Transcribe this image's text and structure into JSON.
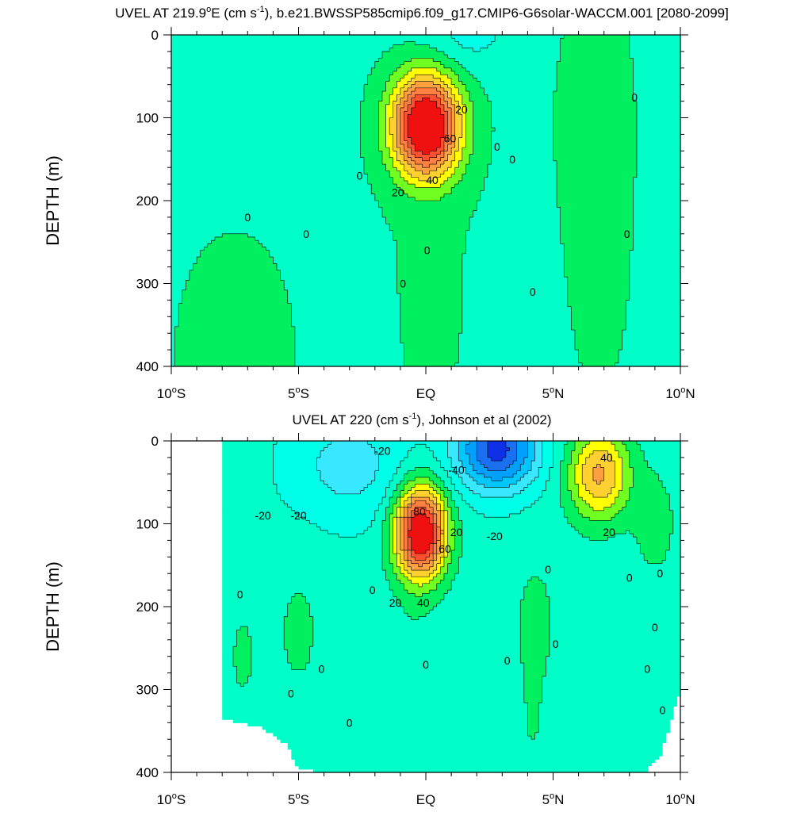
{
  "colors": {
    "levels": [
      -60,
      -50,
      -40,
      -30,
      -20,
      -10,
      0,
      10,
      20,
      30,
      40,
      50,
      60,
      70,
      80
    ],
    "fills": [
      "#1030e8",
      "#1a70f0",
      "#00a0ff",
      "#00c8ff",
      "#38e8ff",
      "#00ffe8",
      "#00ffc8",
      "#00f060",
      "#70ff20",
      "#ffff00",
      "#ffd030",
      "#ffa040",
      "#ff8040",
      "#ff5030",
      "#f01010"
    ],
    "line": "#000000"
  },
  "chart_data": [
    {
      "type": "contour",
      "title_main": "UVEL AT 219.9",
      "title_deg": "o",
      "title_mid": "E (cm s",
      "title_exp": "-1",
      "title_end": "), b.e21.BWSSP585cmip6.f09_g17.CMIP6-G6solar-WACCM.001 [2080-2099]",
      "ylabel": "DEPTH (m)",
      "xlim": [
        -10,
        10
      ],
      "ylim": [
        0,
        400
      ],
      "y_reversed": true,
      "x_ticks": [
        {
          "v": -10,
          "label": "10",
          "deg": "o",
          "suffix": "S"
        },
        {
          "v": -5,
          "label": "5",
          "deg": "o",
          "suffix": "S"
        },
        {
          "v": 0,
          "label": "EQ",
          "deg": "",
          "suffix": ""
        },
        {
          "v": 5,
          "label": "5",
          "deg": "o",
          "suffix": "N"
        },
        {
          "v": 10,
          "label": "10",
          "deg": "o",
          "suffix": "N"
        }
      ],
      "y_ticks": [
        0,
        100,
        200,
        300,
        400
      ],
      "features": [
        {
          "x": 0.0,
          "y": 110,
          "sx": 1.3,
          "sy": 60,
          "a": 95
        },
        {
          "x": 0.2,
          "y": 280,
          "sx": 2.0,
          "sy": 300,
          "a": 3
        },
        {
          "x": 6.6,
          "y": 80,
          "sx": 1.4,
          "sy": 150,
          "a": 6
        },
        {
          "x": 6.8,
          "y": 300,
          "sx": 1.6,
          "sy": 200,
          "a": 3
        },
        {
          "x": -7.5,
          "y": 380,
          "sx": 2.8,
          "sy": 170,
          "a": 4
        },
        {
          "x": 1.5,
          "y": 0,
          "sx": 2.0,
          "sy": 45,
          "a": -12
        },
        {
          "x": -7.0,
          "y": 60,
          "sx": 2.5,
          "sy": 70,
          "a": -3
        }
      ],
      "base": -2,
      "contour_labels": [
        {
          "x": 1.4,
          "y": 90,
          "text": "20"
        },
        {
          "x": 0.95,
          "y": 125,
          "text": "60"
        },
        {
          "x": 0.25,
          "y": 175,
          "text": "40"
        },
        {
          "x": -1.1,
          "y": 190,
          "text": "20"
        },
        {
          "x": -2.6,
          "y": 170,
          "text": "0"
        },
        {
          "x": -7.0,
          "y": 220,
          "text": "0"
        },
        {
          "x": -4.7,
          "y": 240,
          "text": "0"
        },
        {
          "x": 0.05,
          "y": 260,
          "text": "0"
        },
        {
          "x": -0.9,
          "y": 300,
          "text": "0"
        },
        {
          "x": 2.8,
          "y": 135,
          "text": "0"
        },
        {
          "x": 3.4,
          "y": 150,
          "text": "0"
        },
        {
          "x": 4.2,
          "y": 310,
          "text": "0"
        },
        {
          "x": 8.2,
          "y": 75,
          "text": "0"
        },
        {
          "x": 7.9,
          "y": 240,
          "text": "0"
        }
      ]
    },
    {
      "type": "contour",
      "title_main": "UVEL AT 220 (cm s",
      "title_deg": "",
      "title_mid": "",
      "title_exp": "-1",
      "title_end": "), Johnson et al (2002)",
      "ylabel": "DEPTH (m)",
      "xlim": [
        -10,
        10
      ],
      "ylim": [
        0,
        400
      ],
      "y_reversed": true,
      "x_ticks": [
        {
          "v": -10,
          "label": "10",
          "deg": "o",
          "suffix": "S"
        },
        {
          "v": -5,
          "label": "5",
          "deg": "o",
          "suffix": "S"
        },
        {
          "v": 0,
          "label": "EQ",
          "deg": "",
          "suffix": ""
        },
        {
          "v": 5,
          "label": "5",
          "deg": "o",
          "suffix": "N"
        },
        {
          "v": 10,
          "label": "10",
          "deg": "o",
          "suffix": "N"
        }
      ],
      "y_ticks": [
        0,
        100,
        200,
        300,
        400
      ],
      "valid_x": [
        -8.0,
        10.0
      ],
      "mask_bottom": [
        {
          "x": -10,
          "d": 335
        },
        {
          "x": -8,
          "d": 335
        },
        {
          "x": -6.5,
          "d": 345
        },
        {
          "x": -5.5,
          "d": 365
        },
        {
          "x": -5,
          "d": 395
        },
        {
          "x": -4,
          "d": 400
        },
        {
          "x": 8.6,
          "d": 400
        },
        {
          "x": 9.2,
          "d": 380
        },
        {
          "x": 9.8,
          "d": 320
        },
        {
          "x": 10,
          "d": 300
        }
      ],
      "features": [
        {
          "x": -0.2,
          "y": 110,
          "sx": 1.0,
          "sy": 55,
          "a": 95
        },
        {
          "x": 6.8,
          "y": 40,
          "sx": 1.2,
          "sy": 55,
          "a": 48
        },
        {
          "x": 2.8,
          "y": 10,
          "sx": 1.6,
          "sy": 50,
          "a": -58
        },
        {
          "x": -3.0,
          "y": 30,
          "sx": 2.5,
          "sy": 70,
          "a": -18
        },
        {
          "x": 4.3,
          "y": 220,
          "sx": 0.8,
          "sy": 80,
          "a": 10
        },
        {
          "x": 9.0,
          "y": 100,
          "sx": 0.8,
          "sy": 60,
          "a": 12
        },
        {
          "x": -5.0,
          "y": 230,
          "sx": 1.0,
          "sy": 90,
          "a": 8
        },
        {
          "x": -7.2,
          "y": 260,
          "sx": 0.8,
          "sy": 90,
          "a": 7
        },
        {
          "x": -0.5,
          "y": 300,
          "sx": 1.0,
          "sy": 120,
          "a": 6
        },
        {
          "x": 4.2,
          "y": 340,
          "sx": 0.5,
          "sy": 80,
          "a": 6
        }
      ],
      "base": -6,
      "contour_labels": [
        {
          "x": -1.7,
          "y": 12,
          "text": "-20"
        },
        {
          "x": 1.2,
          "y": 35,
          "text": "-40"
        },
        {
          "x": 2.7,
          "y": 115,
          "text": "-20"
        },
        {
          "x": -6.4,
          "y": 90,
          "text": "-20"
        },
        {
          "x": -5.0,
          "y": 90,
          "text": "-20"
        },
        {
          "x": -0.25,
          "y": 85,
          "text": "80"
        },
        {
          "x": 1.2,
          "y": 110,
          "text": "20"
        },
        {
          "x": 0.75,
          "y": 130,
          "text": "60"
        },
        {
          "x": -0.1,
          "y": 195,
          "text": "40"
        },
        {
          "x": -1.2,
          "y": 195,
          "text": "20"
        },
        {
          "x": 0.0,
          "y": 270,
          "text": "0"
        },
        {
          "x": 7.1,
          "y": 20,
          "text": "40"
        },
        {
          "x": 7.2,
          "y": 110,
          "text": "20"
        },
        {
          "x": 4.8,
          "y": 155,
          "text": "0"
        },
        {
          "x": 5.1,
          "y": 245,
          "text": "0"
        },
        {
          "x": 3.2,
          "y": 265,
          "text": "0"
        },
        {
          "x": 8.0,
          "y": 165,
          "text": "0"
        },
        {
          "x": 9.2,
          "y": 160,
          "text": "0"
        },
        {
          "x": 9.0,
          "y": 225,
          "text": "0"
        },
        {
          "x": 8.7,
          "y": 275,
          "text": "0"
        },
        {
          "x": 9.3,
          "y": 325,
          "text": "0"
        },
        {
          "x": -7.3,
          "y": 185,
          "text": "0"
        },
        {
          "x": -4.1,
          "y": 275,
          "text": "0"
        },
        {
          "x": -2.1,
          "y": 180,
          "text": "0"
        },
        {
          "x": -5.3,
          "y": 305,
          "text": "0"
        },
        {
          "x": -3.0,
          "y": 340,
          "text": "0"
        }
      ]
    }
  ]
}
